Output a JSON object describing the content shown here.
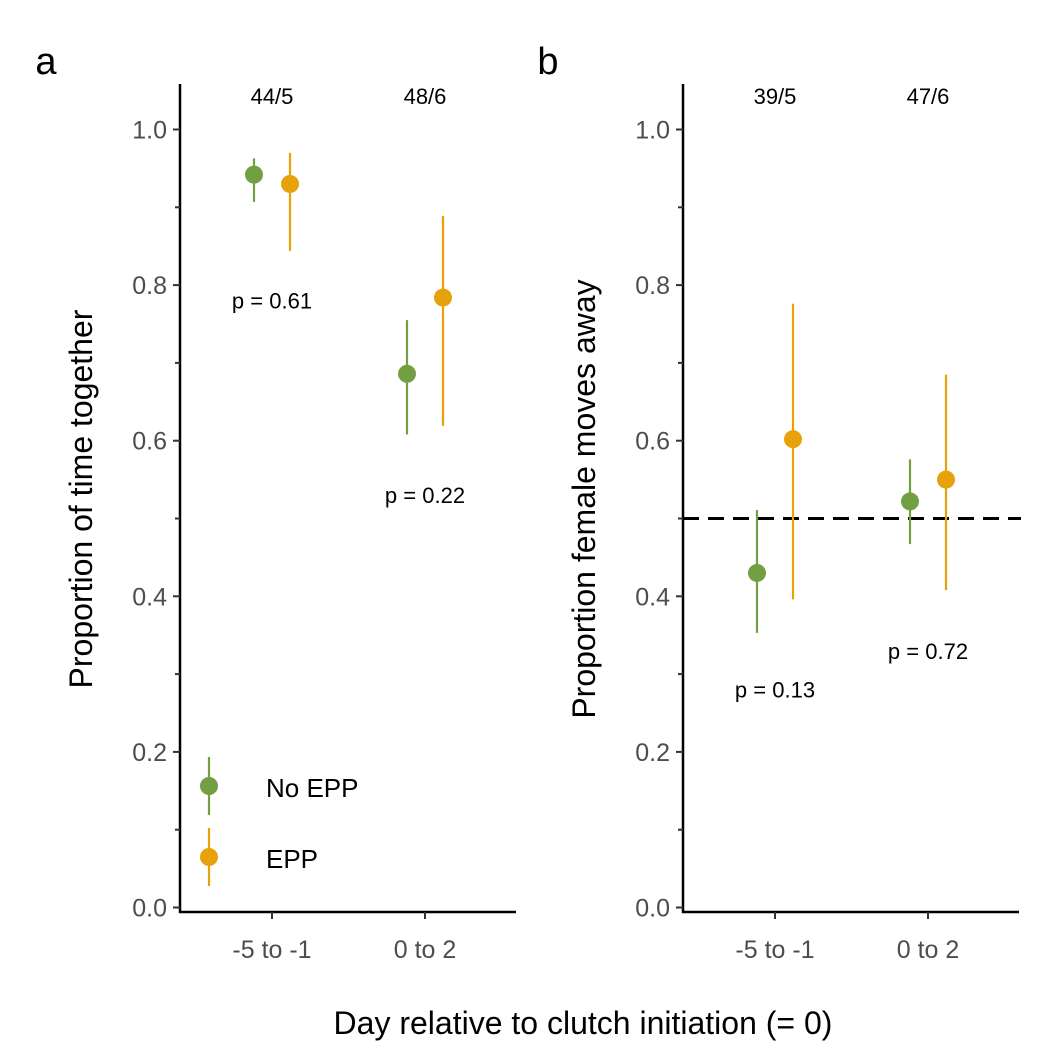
{
  "chart_data": {
    "xlabel": "Day relative to clutch initiation (= 0)",
    "colors": {
      "No EPP": "#739f43",
      "EPP": "#e6a10b"
    },
    "legend": {
      "placement": "bottom-left of panel a",
      "entries": [
        {
          "name": "No EPP",
          "color": "#739f43"
        },
        {
          "name": "EPP",
          "color": "#e6a10b"
        }
      ]
    },
    "panels": [
      {
        "id": "a",
        "letter": "a",
        "type": "scatter",
        "ylabel": "Proportion of time together",
        "ylim": [
          0.0,
          1.0
        ],
        "yticks": [
          "0.0",
          "0.2",
          "0.4",
          "0.6",
          "0.8",
          "1.0"
        ],
        "categories": [
          "-5 to -1",
          "0 to 2"
        ],
        "sample_sizes": [
          "44/5",
          "48/6"
        ],
        "reference_line": null,
        "series": [
          {
            "name": "No EPP",
            "color": "#739f43",
            "points": [
              {
                "category": 0,
                "y": 0.942,
                "lo": 0.907,
                "hi": 0.963
              },
              {
                "category": 1,
                "y": 0.686,
                "lo": 0.608,
                "hi": 0.755
              }
            ]
          },
          {
            "name": "EPP",
            "color": "#e6a10b",
            "points": [
              {
                "category": 0,
                "y": 0.93,
                "lo": 0.844,
                "hi": 0.97
              },
              {
                "category": 1,
                "y": 0.784,
                "lo": 0.619,
                "hi": 0.889
              }
            ]
          }
        ],
        "annotations": [
          {
            "text": "p = 0.61",
            "category": 0,
            "y": 0.78
          },
          {
            "text": "p = 0.22",
            "category": 1,
            "y": 0.53
          }
        ]
      },
      {
        "id": "b",
        "letter": "b",
        "type": "scatter",
        "ylabel": "Proportion female moves away",
        "ylim": [
          0.0,
          1.0
        ],
        "yticks": [
          "0.0",
          "0.2",
          "0.4",
          "0.6",
          "0.8",
          "1.0"
        ],
        "categories": [
          "-5 to -1",
          "0 to 2"
        ],
        "sample_sizes": [
          "39/5",
          "47/6"
        ],
        "reference_line": 0.5,
        "series": [
          {
            "name": "No EPP",
            "color": "#739f43",
            "points": [
              {
                "category": 0,
                "y": 0.43,
                "lo": 0.353,
                "hi": 0.511
              },
              {
                "category": 1,
                "y": 0.522,
                "lo": 0.467,
                "hi": 0.576
              }
            ]
          },
          {
            "name": "EPP",
            "color": "#e6a10b",
            "points": [
              {
                "category": 0,
                "y": 0.602,
                "lo": 0.396,
                "hi": 0.776
              },
              {
                "category": 1,
                "y": 0.55,
                "lo": 0.408,
                "hi": 0.685
              }
            ]
          }
        ],
        "annotations": [
          {
            "text": "p = 0.13",
            "category": 0,
            "y": 0.28
          },
          {
            "text": "p = 0.72",
            "category": 1,
            "y": 0.33
          }
        ]
      }
    ]
  }
}
